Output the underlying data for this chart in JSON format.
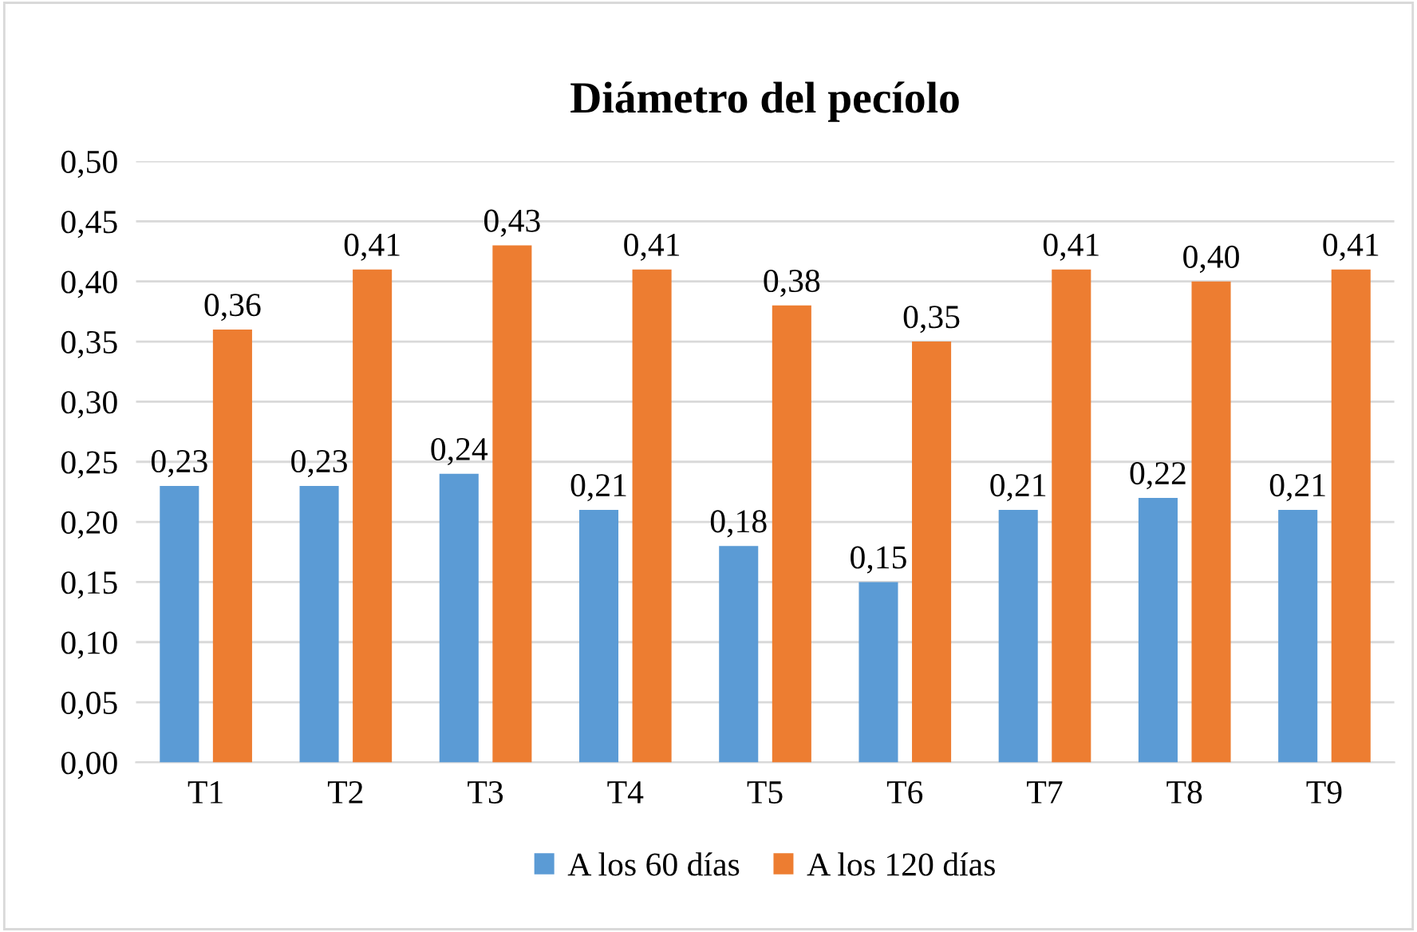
{
  "chart_data": {
    "type": "bar",
    "title": "Diámetro del pecíolo",
    "categories": [
      "T1",
      "T2",
      "T3",
      "T4",
      "T5",
      "T6",
      "T7",
      "T8",
      "T9"
    ],
    "series": [
      {
        "name": "A los 60 días",
        "color": "#5b9bd5",
        "values": [
          0.23,
          0.23,
          0.24,
          0.21,
          0.18,
          0.15,
          0.21,
          0.22,
          0.21
        ],
        "value_labels": [
          "0,23",
          "0,23",
          "0,24",
          "0,21",
          "0,18",
          "0,15",
          "0,21",
          "0,22",
          "0,21"
        ]
      },
      {
        "name": "A los 120 días",
        "color": "#ed7d31",
        "values": [
          0.36,
          0.41,
          0.43,
          0.41,
          0.38,
          0.35,
          0.41,
          0.4,
          0.41
        ],
        "value_labels": [
          "0,36",
          "0,41",
          "0,43",
          "0,41",
          "0,38",
          "0,35",
          "0,41",
          "0,40",
          "0,41"
        ]
      }
    ],
    "ylim": [
      0,
      0.5
    ],
    "yticks": [
      {
        "value": 0,
        "label": "0,00"
      },
      {
        "value": 0.05,
        "label": "0,05"
      },
      {
        "value": 0.1,
        "label": "0,10"
      },
      {
        "value": 0.15,
        "label": "0,15"
      },
      {
        "value": 0.2,
        "label": "0,20"
      },
      {
        "value": 0.25,
        "label": "0,25"
      },
      {
        "value": 0.3,
        "label": "0,30"
      },
      {
        "value": 0.35,
        "label": "0,35"
      },
      {
        "value": 0.4,
        "label": "0,40"
      },
      {
        "value": 0.45,
        "label": "0,45"
      },
      {
        "value": 0.5,
        "label": "0,50"
      }
    ],
    "grid": "y",
    "legend": "bottom"
  }
}
